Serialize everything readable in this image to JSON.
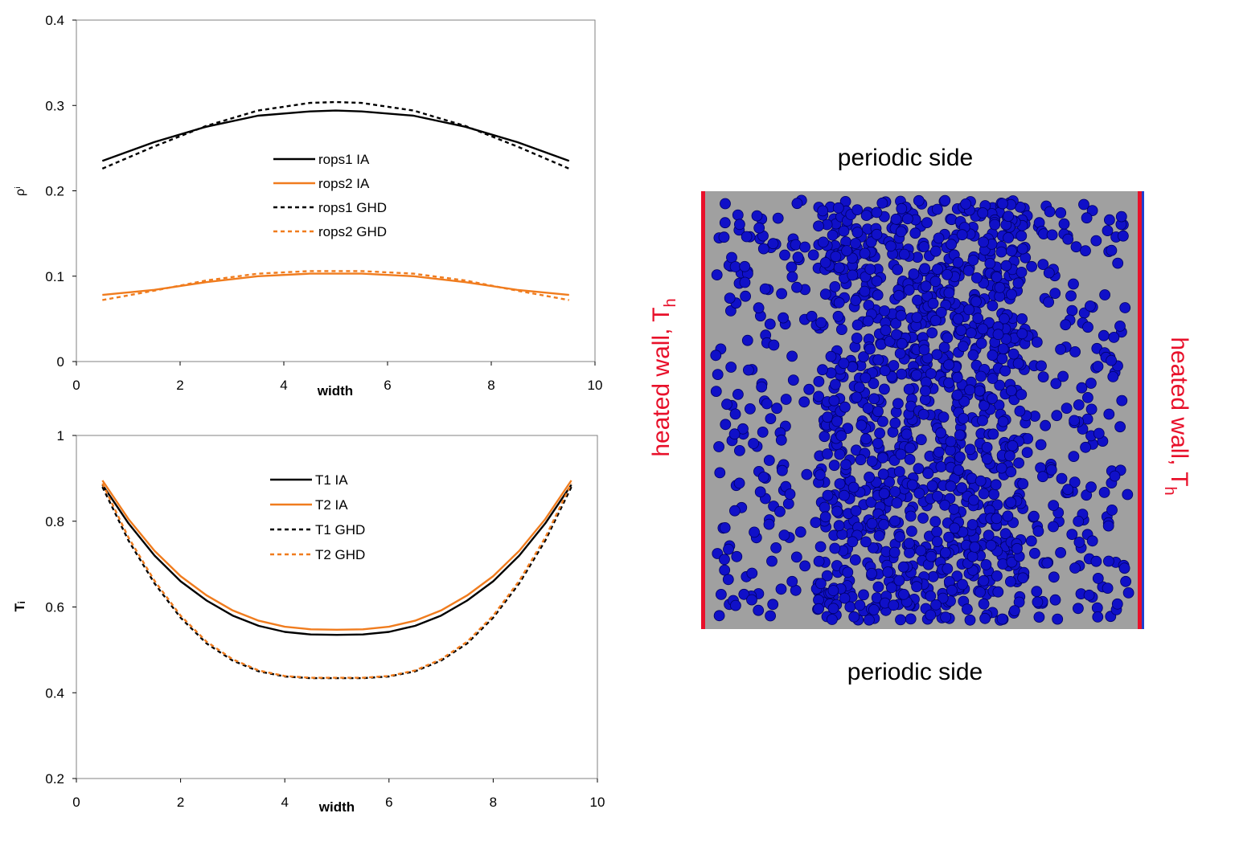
{
  "chart_data": [
    {
      "type": "line",
      "ylabel": "ρⁱ",
      "xlabel": "width",
      "xlim": [
        0,
        10
      ],
      "ylim": [
        0,
        0.4
      ],
      "xticks": [
        "0",
        "2",
        "4",
        "6",
        "8",
        "10"
      ],
      "yticks": [
        "0",
        "0.1",
        "0.2",
        "0.3",
        "0.4"
      ],
      "x": [
        0.5,
        1.5,
        2.5,
        3.5,
        4.5,
        5.0,
        5.5,
        6.5,
        7.5,
        8.5,
        9.5
      ],
      "series": [
        {
          "name": "rops1  IA",
          "color": "#000000",
          "dash": "solid",
          "values": [
            0.235,
            0.257,
            0.275,
            0.288,
            0.293,
            0.294,
            0.293,
            0.288,
            0.275,
            0.257,
            0.235
          ]
        },
        {
          "name": "rops2  IA",
          "color": "#f07c1e",
          "dash": "solid",
          "values": [
            0.078,
            0.084,
            0.093,
            0.1,
            0.103,
            0.103,
            0.103,
            0.1,
            0.093,
            0.084,
            0.078
          ]
        },
        {
          "name": "rops1  GHD",
          "color": "#000000",
          "dash": "dashed",
          "values": [
            0.226,
            0.252,
            0.276,
            0.294,
            0.303,
            0.304,
            0.303,
            0.294,
            0.276,
            0.252,
            0.226
          ]
        },
        {
          "name": "rops2  GHD",
          "color": "#f07c1e",
          "dash": "dashed",
          "values": [
            0.072,
            0.083,
            0.095,
            0.103,
            0.106,
            0.106,
            0.106,
            0.103,
            0.095,
            0.083,
            0.072
          ]
        }
      ]
    },
    {
      "type": "line",
      "ylabel": "Tᵢ",
      "xlabel": "width",
      "xlim": [
        0,
        10
      ],
      "ylim": [
        0.2,
        1.0
      ],
      "xticks": [
        "0",
        "2",
        "4",
        "6",
        "8",
        "10"
      ],
      "yticks": [
        "0.2",
        "0.4",
        "0.6",
        "0.8",
        "1"
      ],
      "x": [
        0.5,
        1.0,
        1.5,
        2.0,
        2.5,
        3.0,
        3.5,
        4.0,
        4.5,
        5.0,
        5.5,
        6.0,
        6.5,
        7.0,
        7.5,
        8.0,
        8.5,
        9.0,
        9.5
      ],
      "series": [
        {
          "name": "T1  IA",
          "color": "#000000",
          "dash": "solid",
          "values": [
            0.885,
            0.795,
            0.72,
            0.66,
            0.615,
            0.58,
            0.556,
            0.542,
            0.536,
            0.535,
            0.536,
            0.542,
            0.556,
            0.58,
            0.615,
            0.66,
            0.72,
            0.795,
            0.885
          ]
        },
        {
          "name": "T2  IA",
          "color": "#f07c1e",
          "dash": "solid",
          "values": [
            0.895,
            0.805,
            0.731,
            0.672,
            0.627,
            0.592,
            0.568,
            0.554,
            0.548,
            0.547,
            0.548,
            0.554,
            0.568,
            0.592,
            0.627,
            0.672,
            0.731,
            0.805,
            0.895
          ]
        },
        {
          "name": "T1   GHD",
          "color": "#000000",
          "dash": "dashed",
          "values": [
            0.88,
            0.755,
            0.655,
            0.575,
            0.515,
            0.475,
            0.45,
            0.438,
            0.434,
            0.434,
            0.434,
            0.438,
            0.45,
            0.475,
            0.515,
            0.575,
            0.655,
            0.755,
            0.88
          ]
        },
        {
          "name": "T2  GHD",
          "color": "#f07c1e",
          "dash": "dashed",
          "values": [
            0.888,
            0.762,
            0.661,
            0.58,
            0.519,
            0.478,
            0.452,
            0.439,
            0.435,
            0.435,
            0.435,
            0.439,
            0.452,
            0.478,
            0.519,
            0.58,
            0.661,
            0.762,
            0.888
          ]
        }
      ]
    }
  ],
  "diagram": {
    "top_label": "periodic side",
    "bottom_label": "periodic side",
    "left_wall_label": "heated wall, T",
    "left_wall_sub": "h",
    "right_wall_label": "heated wall, T",
    "right_wall_sub": "h",
    "particle_color": "#1010c8",
    "wall_color": "#e8102a",
    "box_color": "#a0a0a0"
  }
}
